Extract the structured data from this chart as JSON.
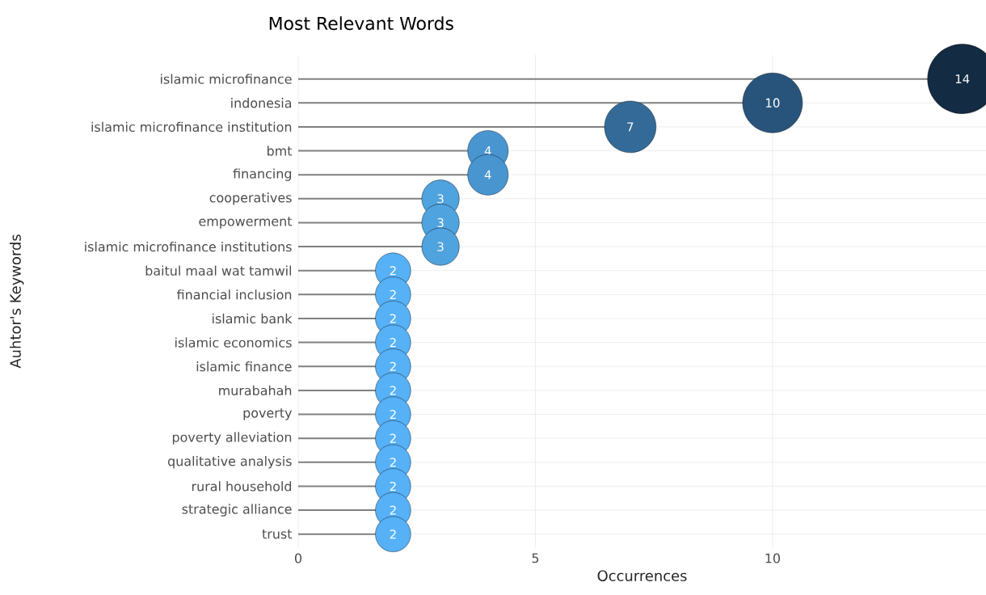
{
  "chart_data": {
    "type": "lollipop",
    "title": "Most Relevant Words",
    "xlabel": "Occurrences",
    "ylabel": "Auhtor's Keywords",
    "orientation": "horizontal",
    "categories": [
      "islamic microfinance",
      "indonesia",
      "islamic microfinance institution",
      "bmt",
      "financing",
      "cooperatives",
      "empowerment",
      "islamic microfinance institutions",
      "baitul maal wat tamwil",
      "financial inclusion",
      "islamic bank",
      "islamic economics",
      "islamic finance",
      "murabahah",
      "poverty",
      "poverty alleviation",
      "qualitative analysis",
      "rural household",
      "strategic alliance",
      "trust"
    ],
    "values": [
      14,
      10,
      7,
      4,
      4,
      3,
      3,
      3,
      2,
      2,
      2,
      2,
      2,
      2,
      2,
      2,
      2,
      2,
      2,
      2
    ],
    "colors": [
      "#132b43",
      "#28547c",
      "#336a98",
      "#4895d0",
      "#4895d0",
      "#4fa3de",
      "#4fa3de",
      "#4fa3de",
      "#56b1f7",
      "#56b1f7",
      "#56b1f7",
      "#56b1f7",
      "#56b1f7",
      "#56b1f7",
      "#56b1f7",
      "#56b1f7",
      "#56b1f7",
      "#56b1f7",
      "#56b1f7",
      "#56b1f7"
    ],
    "sizes": [
      1,
      0.74,
      0.55,
      0.34,
      0.34,
      0.29,
      0.29,
      0.29,
      0.26,
      0.26,
      0.26,
      0.26,
      0.26,
      0.26,
      0.26,
      0.26,
      0.26,
      0.26,
      0.26,
      0.26
    ],
    "xlim": [
      0,
      14.5
    ],
    "xticks": [
      0,
      5,
      10
    ],
    "grid": true,
    "data_labels": true
  }
}
